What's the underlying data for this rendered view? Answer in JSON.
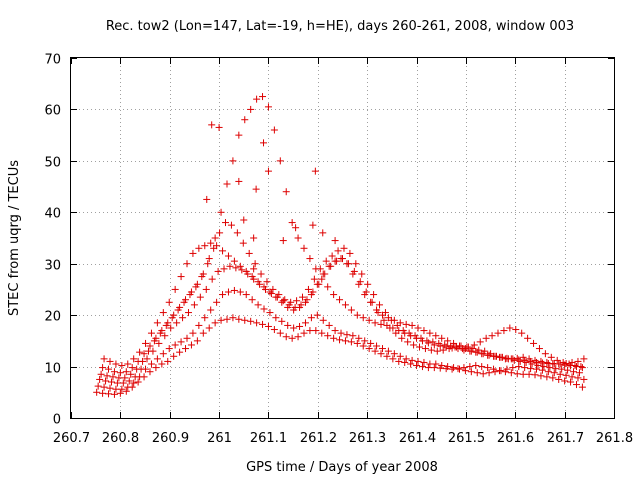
{
  "chart_data": {
    "type": "scatter",
    "title": "Rec. tow2 (Lon=147, Lat=-19, h=HE), days 260-261, 2008, window 003",
    "xlabel": "GPS time / Days of year 2008",
    "ylabel": "STEC from uqrg / TECUs",
    "xlim": [
      260.7,
      261.8
    ],
    "ylim": [
      0,
      70
    ],
    "x_ticks": [
      "260.7",
      "260.8",
      "260.9",
      "261",
      "261.1",
      "261.2",
      "261.3",
      "261.4",
      "261.5",
      "261.6",
      "261.7",
      "261.8"
    ],
    "y_ticks": [
      "0",
      "10",
      "20",
      "30",
      "40",
      "50",
      "60",
      "70"
    ],
    "grid": true,
    "legend": "none",
    "marker": "plus",
    "color": "#dd0000",
    "series": [
      {
        "x": [
          260.752,
          260.764,
          260.776,
          260.788,
          260.8,
          260.812,
          260.824,
          260.836,
          260.848,
          260.86,
          260.872,
          260.884,
          260.896,
          260.908,
          260.92,
          260.932,
          260.944,
          260.956,
          260.968,
          260.98,
          260.992,
          261.004,
          261.016,
          261.028,
          261.04,
          261.052,
          261.064,
          261.076,
          261.088,
          261.1,
          261.112,
          261.124,
          261.136,
          261.148,
          261.16,
          261.172,
          261.184,
          261.196,
          261.208,
          261.22,
          261.232,
          261.244,
          261.256,
          261.268,
          261.28,
          261.292,
          261.304,
          261.316,
          261.328,
          261.34,
          261.352,
          261.364,
          261.376,
          261.388,
          261.4,
          261.412,
          261.424,
          261.436,
          261.448,
          261.46,
          261.472,
          261.484,
          261.496,
          261.508,
          261.52,
          261.532,
          261.544,
          261.556,
          261.568,
          261.58,
          261.592,
          261.604,
          261.616,
          261.628,
          261.64,
          261.652,
          261.664,
          261.676,
          261.688,
          261.7,
          261.712,
          261.724,
          261.736
        ],
        "y": [
          5.0,
          4.8,
          4.7,
          4.6,
          4.8,
          5.2,
          6.0,
          7.0,
          8.0,
          9.0,
          9.8,
          10.5,
          11.0,
          12.0,
          12.8,
          13.5,
          14.2,
          15.0,
          16.5,
          17.5,
          18.5,
          19.0,
          19.2,
          19.5,
          19.2,
          19.0,
          18.8,
          18.5,
          18.2,
          17.8,
          17.2,
          16.5,
          15.8,
          15.5,
          15.8,
          16.5,
          17.0,
          17.0,
          16.5,
          16.0,
          15.5,
          15.2,
          15.0,
          14.8,
          14.5,
          14.0,
          13.5,
          13.0,
          12.5,
          12.0,
          11.5,
          11.0,
          10.8,
          10.5,
          10.2,
          10.0,
          9.8,
          9.8,
          9.7,
          9.6,
          9.5,
          9.6,
          9.8,
          10.0,
          10.2,
          10.0,
          9.8,
          9.5,
          9.2,
          9.0,
          8.8,
          8.6,
          8.5,
          8.5,
          8.4,
          8.2,
          8.0,
          7.8,
          7.5,
          7.2,
          7.0,
          6.5,
          6.0
        ]
      },
      {
        "x": [
          260.755,
          260.767,
          260.779,
          260.791,
          260.803,
          260.815,
          260.827,
          260.839,
          260.851,
          260.863,
          260.875,
          260.887,
          260.899,
          260.911,
          260.923,
          260.935,
          260.947,
          260.959,
          260.971,
          260.983,
          260.995,
          261.007,
          261.019,
          261.031,
          261.043,
          261.055,
          261.067,
          261.079,
          261.091,
          261.103,
          261.115,
          261.127,
          261.139,
          261.151,
          261.163,
          261.175,
          261.187,
          261.199,
          261.211,
          261.223,
          261.235,
          261.247,
          261.259,
          261.271,
          261.283,
          261.295,
          261.307,
          261.319,
          261.331,
          261.343,
          261.355,
          261.367,
          261.379,
          261.391,
          261.403,
          261.415,
          261.427,
          261.439,
          261.451,
          261.463,
          261.475,
          261.487,
          261.499,
          261.511,
          261.523,
          261.535,
          261.547,
          261.559,
          261.571,
          261.583,
          261.595,
          261.607,
          261.619,
          261.631,
          261.643,
          261.655,
          261.667,
          261.679,
          261.691,
          261.703,
          261.715,
          261.727,
          261.739
        ],
        "y": [
          6.2,
          6.0,
          5.8,
          5.6,
          5.6,
          6.0,
          6.8,
          8.0,
          9.5,
          10.5,
          11.5,
          12.5,
          13.5,
          14.2,
          14.8,
          15.5,
          16.5,
          18.0,
          19.5,
          21.0,
          22.5,
          24.0,
          24.5,
          24.8,
          24.5,
          24.0,
          23.0,
          22.0,
          21.2,
          20.5,
          19.5,
          18.8,
          18.0,
          17.5,
          17.8,
          18.5,
          19.5,
          20.0,
          19.0,
          18.0,
          17.0,
          16.5,
          16.2,
          16.0,
          15.5,
          15.0,
          14.5,
          14.0,
          13.5,
          13.0,
          12.5,
          12.0,
          11.5,
          11.2,
          11.0,
          10.8,
          10.5,
          10.5,
          10.2,
          10.0,
          9.8,
          9.5,
          9.2,
          9.0,
          8.8,
          8.6,
          8.8,
          9.0,
          9.2,
          9.5,
          9.8,
          10.0,
          9.8,
          9.6,
          9.5,
          9.3,
          9.0,
          8.8,
          8.5,
          8.3,
          8.0,
          7.8,
          7.5
        ]
      },
      {
        "x": [
          260.758,
          260.77,
          260.782,
          260.794,
          260.806,
          260.818,
          260.83,
          260.842,
          260.854,
          260.866,
          260.878,
          260.89,
          260.902,
          260.914,
          260.926,
          260.938,
          260.95,
          260.962,
          260.974,
          260.986,
          260.998,
          261.01,
          261.022,
          261.034,
          261.046,
          261.058,
          261.07,
          261.082,
          261.094,
          261.106,
          261.118,
          261.13,
          261.142,
          261.154,
          261.166,
          261.178,
          261.19,
          261.202,
          261.214,
          261.226,
          261.238,
          261.25,
          261.262,
          261.274,
          261.286,
          261.298,
          261.31,
          261.322,
          261.334,
          261.346,
          261.358,
          261.37,
          261.382,
          261.394,
          261.406,
          261.418,
          261.43,
          261.442,
          261.454,
          261.466,
          261.478,
          261.49,
          261.502,
          261.514,
          261.526,
          261.538,
          261.55,
          261.562,
          261.574,
          261.586,
          261.598,
          261.61,
          261.622,
          261.634,
          261.646,
          261.658,
          261.67,
          261.682,
          261.694,
          261.706,
          261.718,
          261.73
        ],
        "y": [
          7.5,
          7.2,
          7.0,
          6.8,
          6.8,
          7.2,
          8.0,
          9.5,
          11.5,
          13.0,
          14.5,
          16.0,
          17.5,
          18.5,
          19.5,
          20.5,
          22.0,
          23.5,
          25.0,
          27.0,
          28.5,
          29.0,
          29.5,
          29.2,
          28.8,
          28.0,
          27.0,
          26.0,
          25.0,
          24.2,
          23.5,
          22.8,
          22.0,
          21.5,
          22.0,
          23.0,
          24.5,
          26.0,
          28.0,
          29.5,
          30.5,
          31.0,
          30.0,
          28.5,
          26.5,
          24.5,
          22.5,
          20.5,
          19.0,
          17.5,
          16.5,
          15.5,
          14.8,
          14.2,
          13.8,
          13.5,
          13.2,
          13.0,
          13.2,
          13.5,
          13.8,
          14.0,
          13.8,
          13.5,
          13.2,
          13.0,
          12.5,
          12.0,
          11.8,
          11.5,
          11.2,
          11.0,
          10.8,
          10.5,
          10.2,
          10.0,
          9.8,
          9.6,
          9.5,
          9.3,
          9.0,
          8.8
        ]
      },
      {
        "x": [
          260.761,
          260.773,
          260.785,
          260.797,
          260.809,
          260.821,
          260.833,
          260.845,
          260.857,
          260.869,
          260.881,
          260.893,
          260.905,
          260.917,
          260.929,
          260.941,
          260.953,
          260.965,
          260.977,
          260.989,
          261.001,
          261.013,
          261.025,
          261.037,
          261.049,
          261.061,
          261.073,
          261.085,
          261.097,
          261.109,
          261.121,
          261.133,
          261.145,
          261.157,
          261.169,
          261.181,
          261.193,
          261.205,
          261.217,
          261.229,
          261.241,
          261.253,
          261.265,
          261.277,
          261.289,
          261.301,
          261.313,
          261.325,
          261.337,
          261.349,
          261.361,
          261.373,
          261.385,
          261.397,
          261.409,
          261.421,
          261.433,
          261.445,
          261.457,
          261.469,
          261.481,
          261.493,
          261.505,
          261.517,
          261.529,
          261.541,
          261.553,
          261.565,
          261.577,
          261.589,
          261.601,
          261.613,
          261.625,
          261.637,
          261.649,
          261.661,
          261.673,
          261.685,
          261.697,
          261.709,
          261.721,
          261.733
        ],
        "y": [
          8.5,
          8.2,
          8.0,
          7.8,
          7.8,
          8.5,
          9.5,
          11.0,
          13.0,
          15.0,
          16.5,
          18.0,
          19.5,
          21.0,
          22.5,
          24.0,
          25.5,
          27.5,
          30.0,
          33.0,
          36.0,
          38.0,
          37.5,
          36.0,
          34.0,
          32.0,
          30.0,
          28.0,
          26.5,
          25.0,
          24.0,
          23.0,
          22.5,
          22.8,
          23.5,
          25.0,
          27.0,
          29.0,
          30.5,
          31.5,
          32.5,
          33.0,
          32.0,
          30.0,
          28.0,
          26.0,
          24.0,
          22.0,
          20.5,
          19.0,
          18.0,
          17.0,
          16.5,
          16.0,
          15.5,
          15.0,
          14.8,
          14.5,
          14.2,
          14.0,
          13.8,
          13.5,
          13.8,
          14.2,
          14.8,
          15.5,
          16.0,
          16.5,
          17.0,
          17.5,
          17.2,
          16.5,
          15.5,
          14.5,
          13.5,
          12.5,
          11.8,
          11.2,
          10.8,
          10.5,
          10.2,
          10.0
        ]
      },
      {
        "x": [
          260.764,
          260.776,
          260.788,
          260.8,
          260.812,
          260.824,
          260.836,
          260.848,
          260.86,
          260.872,
          260.884,
          260.896,
          260.908,
          260.92,
          260.932,
          260.944,
          260.956,
          260.968,
          260.98,
          260.992,
          261.004,
          261.016,
          261.028,
          261.04,
          261.052,
          261.064,
          261.076,
          261.088,
          261.1,
          261.112,
          261.124,
          261.136,
          261.148,
          261.16,
          261.172,
          261.184,
          261.196,
          261.208,
          261.22,
          261.232,
          261.244,
          261.256,
          261.268,
          261.28,
          261.292,
          261.304,
          261.316,
          261.328,
          261.34,
          261.352,
          261.364,
          261.376,
          261.388,
          261.4,
          261.412,
          261.424,
          261.436,
          261.448,
          261.46,
          261.472,
          261.484,
          261.496,
          261.508,
          261.52,
          261.532,
          261.544,
          261.556,
          261.568,
          261.58,
          261.592,
          261.604,
          261.616,
          261.628,
          261.64,
          261.652,
          261.664,
          261.676,
          261.688,
          261.7,
          261.712,
          261.724,
          261.736
        ],
        "y": [
          9.8,
          9.5,
          9.0,
          8.8,
          9.0,
          9.8,
          11.0,
          12.5,
          14.0,
          15.5,
          17.0,
          18.5,
          20.0,
          21.5,
          23.0,
          24.5,
          26.0,
          28.0,
          31.0,
          35.0,
          40.0,
          45.5,
          50.0,
          55.0,
          58.0,
          60.0,
          62.0,
          62.5,
          60.5,
          56.0,
          50.0,
          44.0,
          38.0,
          35.0,
          33.0,
          31.0,
          29.0,
          27.0,
          25.5,
          24.0,
          23.0,
          22.0,
          21.0,
          20.0,
          19.5,
          19.0,
          18.5,
          18.2,
          18.0,
          17.5,
          17.0,
          16.5,
          16.0,
          15.5,
          15.0,
          14.6,
          14.2,
          14.0,
          13.8,
          13.6,
          13.5,
          13.2,
          13.0,
          12.8,
          12.5,
          12.2,
          12.0,
          11.8,
          11.5,
          11.5,
          11.6,
          11.8,
          11.5,
          11.2,
          11.0,
          10.8,
          10.6,
          10.5,
          10.3,
          10.2,
          10.0,
          9.8
        ]
      },
      {
        "x": [
          260.767,
          260.779,
          260.791,
          260.803,
          260.815,
          260.827,
          260.839,
          260.851,
          260.863,
          260.875,
          260.887,
          260.899,
          260.911,
          260.923,
          260.935,
          260.947,
          260.959,
          260.971,
          260.983,
          260.995,
          261.007,
          261.019,
          261.031,
          261.043,
          261.055,
          261.067,
          261.079,
          261.091,
          261.103,
          261.115,
          261.127,
          261.139,
          261.151,
          261.163,
          261.175,
          261.187,
          261.199,
          261.211,
          261.223,
          261.235,
          261.247,
          261.259,
          261.271,
          261.283,
          261.295,
          261.307,
          261.319,
          261.331,
          261.343,
          261.355,
          261.367,
          261.379,
          261.391,
          261.403,
          261.415,
          261.427,
          261.439,
          261.451,
          261.463,
          261.475,
          261.487,
          261.499,
          261.511,
          261.523,
          261.535,
          261.547,
          261.559,
          261.571,
          261.583,
          261.595,
          261.607,
          261.619,
          261.631,
          261.643,
          261.655,
          261.667,
          261.679,
          261.691,
          261.703,
          261.715,
          261.727,
          261.739
        ],
        "y": [
          11.5,
          11.0,
          10.5,
          10.2,
          10.5,
          11.5,
          12.8,
          14.5,
          16.5,
          18.5,
          20.5,
          22.5,
          25.0,
          27.5,
          30.0,
          32.0,
          33.0,
          33.5,
          34.0,
          33.5,
          32.5,
          31.5,
          30.5,
          29.5,
          28.5,
          27.5,
          26.5,
          25.5,
          24.5,
          23.5,
          22.5,
          21.5,
          21.0,
          21.5,
          22.5,
          24.0,
          26.0,
          28.0,
          29.5,
          30.5,
          31.0,
          30.0,
          28.0,
          26.0,
          24.0,
          22.5,
          21.0,
          20.0,
          19.5,
          19.0,
          18.5,
          18.2,
          18.0,
          17.5,
          17.0,
          16.5,
          16.0,
          15.5,
          15.0,
          14.5,
          14.0,
          13.5,
          13.0,
          12.8,
          12.5,
          12.2,
          12.0,
          11.8,
          11.6,
          11.5,
          11.3,
          11.2,
          11.0,
          10.8,
          10.7,
          10.6,
          10.5,
          10.5,
          10.6,
          10.8,
          11.0,
          11.5
        ]
      },
      {
        "x": [
          260.985,
          261.0,
          261.04,
          261.05,
          261.07,
          261.075,
          261.09,
          261.1,
          261.195,
          261.13,
          261.155,
          261.07,
          260.975,
          261.21,
          261.235,
          261.19
        ],
        "y": [
          57.0,
          56.5,
          46.0,
          38.5,
          35.0,
          44.5,
          53.5,
          48.0,
          48.0,
          34.5,
          37.0,
          29.0,
          42.5,
          36.0,
          34.5,
          37.5
        ]
      }
    ]
  }
}
